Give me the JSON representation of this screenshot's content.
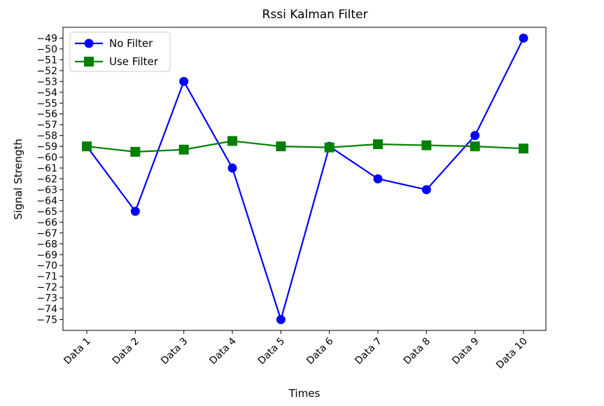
{
  "chart_data": {
    "type": "line",
    "title": "Rssi Kalman Filter",
    "xlabel": "Times",
    "ylabel": "Signal Strength",
    "categories": [
      "Data 1",
      "Data 2",
      "Data 3",
      "Data 4",
      "Data 5",
      "Data 6",
      "Data 7",
      "Data 8",
      "Data 9",
      "Data 10"
    ],
    "ylim": [
      -76,
      -48
    ],
    "yticks": [
      -75,
      -74,
      -73,
      -72,
      -71,
      -70,
      -69,
      -68,
      -67,
      -66,
      -65,
      -64,
      -63,
      -62,
      -61,
      -60,
      -59,
      -58,
      -57,
      -56,
      -55,
      -54,
      -53,
      -52,
      -51,
      -50,
      -49
    ],
    "grid": false,
    "legend_position": "top-left",
    "series": [
      {
        "name": "No Filter",
        "color": "#0000ff",
        "marker": "circle",
        "values": [
          -59,
          -65,
          -53,
          -61,
          -75,
          -59,
          -62,
          -63,
          -58,
          -49
        ]
      },
      {
        "name": "Use Filter",
        "color": "#008000",
        "marker": "square",
        "values": [
          -59,
          -59.5,
          -59.3,
          -58.5,
          -59,
          -59.1,
          -58.8,
          -58.9,
          -59,
          -59.2
        ]
      }
    ]
  }
}
